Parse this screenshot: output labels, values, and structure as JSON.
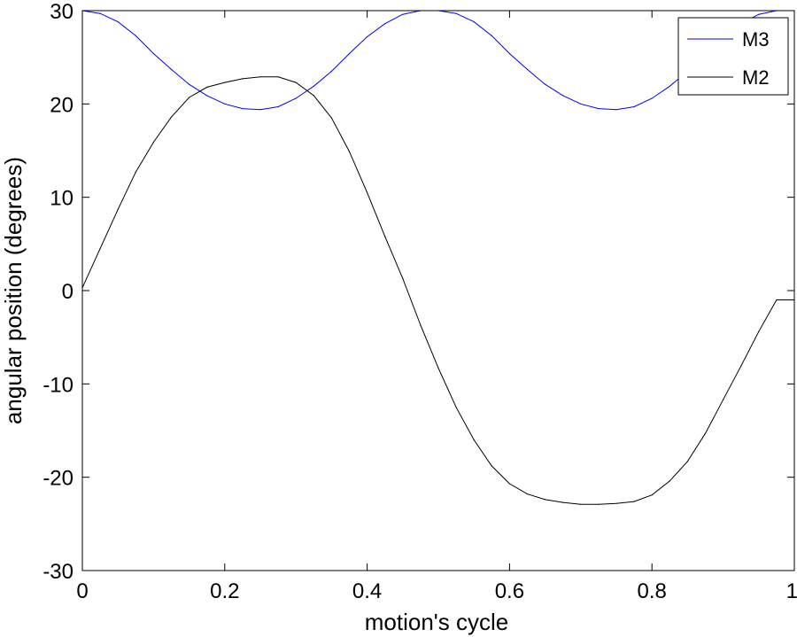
{
  "chart_data": {
    "type": "line",
    "title": "",
    "xlabel": "motion's cycle",
    "ylabel": "angular position (degrees)",
    "xlim": [
      0,
      1
    ],
    "ylim": [
      -30,
      30
    ],
    "xticks": [
      0,
      0.2,
      0.4,
      0.6,
      0.8,
      1
    ],
    "xtick_labels": [
      "0",
      "0.2",
      "0.4",
      "0.6",
      "0.8",
      "1"
    ],
    "yticks": [
      -30,
      -20,
      -10,
      0,
      10,
      20,
      30
    ],
    "ytick_labels": [
      "-30",
      "-20",
      "-10",
      "0",
      "10",
      "20",
      "30"
    ],
    "grid": false,
    "legend_position": "top-right",
    "series": [
      {
        "name": "M3",
        "color": "#0000ff",
        "x": [
          0,
          0.025,
          0.05,
          0.075,
          0.1,
          0.125,
          0.15,
          0.175,
          0.2,
          0.225,
          0.25,
          0.275,
          0.3,
          0.325,
          0.35,
          0.375,
          0.4,
          0.425,
          0.45,
          0.475,
          0.5,
          0.525,
          0.55,
          0.575,
          0.6,
          0.625,
          0.65,
          0.675,
          0.7,
          0.725,
          0.75,
          0.775,
          0.8,
          0.825,
          0.85,
          0.875,
          0.9,
          0.925,
          0.95,
          0.975,
          1
        ],
        "y": [
          30,
          29.7,
          28.8,
          27.3,
          25.4,
          23.7,
          22.1,
          20.9,
          20.0,
          19.5,
          19.4,
          19.7,
          20.6,
          21.9,
          23.5,
          25.4,
          27.2,
          28.6,
          29.6,
          30.0,
          30.0,
          29.7,
          28.8,
          27.3,
          25.4,
          23.7,
          22.1,
          20.9,
          20.0,
          19.5,
          19.4,
          19.7,
          20.6,
          21.9,
          23.5,
          25.4,
          27.2,
          28.6,
          29.6,
          30.0,
          30.0
        ]
      },
      {
        "name": "M2",
        "color": "#000000",
        "x": [
          0,
          0.025,
          0.05,
          0.075,
          0.1,
          0.125,
          0.15,
          0.175,
          0.2,
          0.225,
          0.25,
          0.275,
          0.3,
          0.325,
          0.35,
          0.375,
          0.4,
          0.425,
          0.45,
          0.475,
          0.5,
          0.525,
          0.55,
          0.575,
          0.6,
          0.625,
          0.65,
          0.675,
          0.7,
          0.725,
          0.75,
          0.775,
          0.8,
          0.825,
          0.85,
          0.875,
          0.9,
          0.925,
          0.95,
          0.975,
          1
        ],
        "y": [
          0.3,
          4.5,
          8.7,
          12.7,
          15.9,
          18.6,
          20.7,
          21.8,
          22.3,
          22.7,
          22.9,
          22.9,
          22.3,
          20.9,
          18.5,
          14.9,
          10.5,
          5.8,
          1.3,
          -3.7,
          -8.3,
          -12.5,
          -16.0,
          -18.8,
          -20.7,
          -21.8,
          -22.4,
          -22.7,
          -22.9,
          -22.9,
          -22.8,
          -22.6,
          -21.9,
          -20.4,
          -18.3,
          -15.3,
          -11.7,
          -8.1,
          -4.4,
          -1.0,
          -1.0
        ]
      }
    ]
  }
}
